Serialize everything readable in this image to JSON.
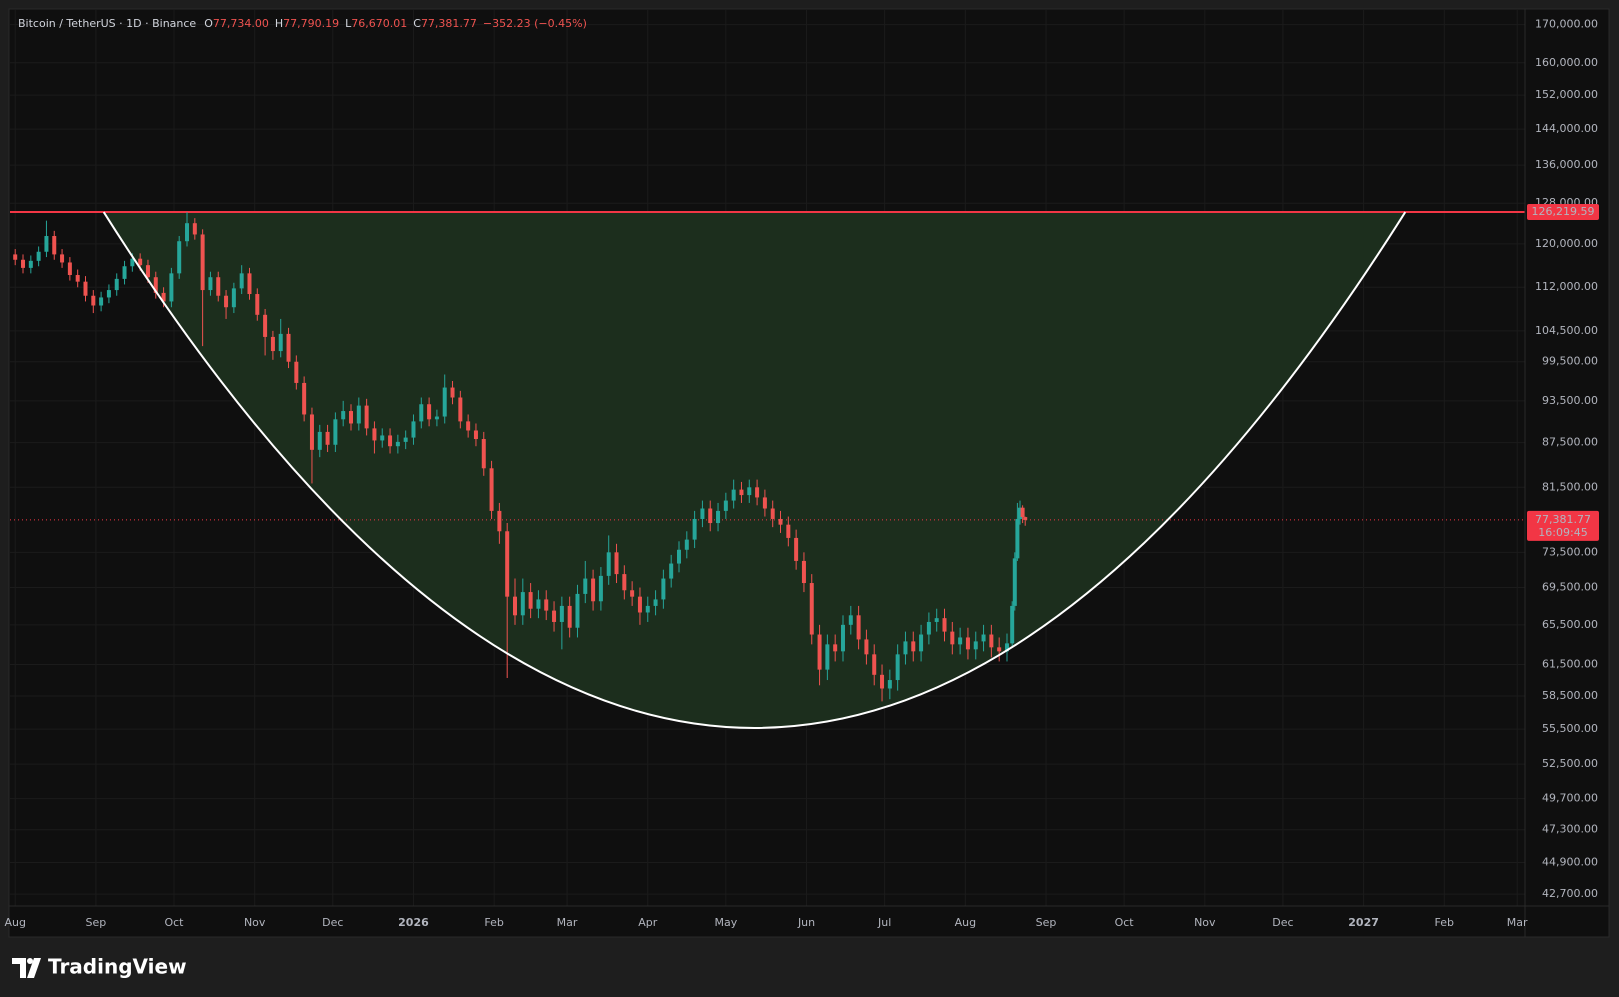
{
  "chart_data": {
    "type": "candlestick",
    "header": {
      "symbol": "Bitcoin / TetherUS · 1D · Binance",
      "ohlc": [
        {
          "key": "O",
          "value": "77,734.00"
        },
        {
          "key": "H",
          "value": "77,790.19"
        },
        {
          "key": "L",
          "value": "76,670.01"
        },
        {
          "key": "C",
          "value": "77,381.77"
        }
      ],
      "change": "−352.23 (−0.45%)"
    },
    "log_scale": true,
    "grid": true,
    "up_color": "#26a69a",
    "down_color": "#ef5350",
    "xlim": [
      -2,
      580
    ],
    "ylim": [
      41900,
      174000
    ],
    "xticks": [
      {
        "value": 0,
        "label": "Aug"
      },
      {
        "value": 31,
        "label": "Sep"
      },
      {
        "value": 61,
        "label": "Oct"
      },
      {
        "value": 92,
        "label": "Nov"
      },
      {
        "value": 122,
        "label": "Dec"
      },
      {
        "value": 153,
        "label": "2026"
      },
      {
        "value": 184,
        "label": "Feb"
      },
      {
        "value": 212,
        "label": "Mar"
      },
      {
        "value": 243,
        "label": "Apr"
      },
      {
        "value": 273,
        "label": "May"
      },
      {
        "value": 304,
        "label": "Jun"
      },
      {
        "value": 334,
        "label": "Jul"
      },
      {
        "value": 365,
        "label": "Aug"
      },
      {
        "value": 396,
        "label": "Sep"
      },
      {
        "value": 426,
        "label": "Oct"
      },
      {
        "value": 457,
        "label": "Nov"
      },
      {
        "value": 487,
        "label": "Dec"
      },
      {
        "value": 518,
        "label": "2027"
      },
      {
        "value": 549,
        "label": "Feb"
      },
      {
        "value": 577,
        "label": "Mar"
      }
    ],
    "yticks": [
      {
        "value": 170000,
        "label": "170,000.00"
      },
      {
        "value": 160000,
        "label": "160,000.00"
      },
      {
        "value": 152000,
        "label": "152,000.00"
      },
      {
        "value": 144000,
        "label": "144,000.00"
      },
      {
        "value": 136000,
        "label": "136,000.00"
      },
      {
        "value": 128000,
        "label": "128,000.00"
      },
      {
        "value": 120000,
        "label": "120,000.00"
      },
      {
        "value": 112000,
        "label": "112,000.00"
      },
      {
        "value": 104500,
        "label": "104,500.00"
      },
      {
        "value": 99500,
        "label": "99,500.00"
      },
      {
        "value": 93500,
        "label": "93,500.00"
      },
      {
        "value": 87500,
        "label": "87,500.00"
      },
      {
        "value": 81500,
        "label": "81,500.00"
      },
      {
        "value": 73500,
        "label": "73,500.00"
      },
      {
        "value": 69500,
        "label": "69,500.00"
      },
      {
        "value": 65500,
        "label": "65,500.00"
      },
      {
        "value": 61500,
        "label": "61,500.00"
      },
      {
        "value": 58500,
        "label": "58,500.00"
      },
      {
        "value": 55500,
        "label": "55,500.00"
      },
      {
        "value": 52500,
        "label": "52,500.00"
      },
      {
        "value": 49700,
        "label": "49,700.00"
      },
      {
        "value": 47300,
        "label": "47,300.00"
      },
      {
        "value": 44900,
        "label": "44,900.00"
      },
      {
        "value": 42700,
        "label": "42,700.00"
      }
    ],
    "x": [
      0,
      3,
      6,
      9,
      12,
      15,
      18,
      21,
      24,
      27,
      30,
      33,
      36,
      39,
      42,
      45,
      48,
      51,
      54,
      57,
      60,
      63,
      66,
      69,
      72,
      75,
      78,
      81,
      84,
      87,
      90,
      93,
      96,
      99,
      102,
      105,
      108,
      111,
      114,
      117,
      120,
      123,
      126,
      129,
      132,
      135,
      138,
      141,
      144,
      147,
      150,
      153,
      156,
      159,
      162,
      165,
      168,
      171,
      174,
      177,
      180,
      183,
      186,
      189,
      192,
      195,
      198,
      201,
      204,
      207,
      210,
      213,
      216,
      219,
      222,
      225,
      228,
      231,
      234,
      237,
      240,
      243,
      246,
      249,
      252,
      255,
      258,
      261,
      264,
      267,
      270,
      273,
      276,
      279,
      282,
      285,
      288,
      291,
      294,
      297,
      300,
      303,
      306,
      309,
      312,
      315,
      318,
      321,
      324,
      327,
      330,
      333,
      336,
      339,
      342,
      345,
      348,
      351,
      354,
      357,
      360,
      363,
      366,
      369,
      372,
      375,
      378,
      381,
      383,
      384,
      385,
      386,
      387,
      388
    ],
    "open": [
      118000,
      117000,
      115500,
      116800,
      118500,
      121500,
      118000,
      116500,
      114200,
      113000,
      110500,
      108800,
      110200,
      111500,
      113500,
      115800,
      117200,
      116000,
      113800,
      111000,
      109500,
      114500,
      120500,
      124000,
      121800,
      111500,
      113800,
      110500,
      108500,
      111800,
      114500,
      110800,
      107200,
      103500,
      101200,
      104000,
      99500,
      96200,
      91500,
      86500,
      89000,
      87200,
      90800,
      92000,
      90200,
      92800,
      89500,
      87800,
      88500,
      87000,
      87600,
      88200,
      90500,
      93000,
      90800,
      91200,
      95500,
      94000,
      90500,
      89200,
      88000,
      84000,
      78500,
      76000,
      68500,
      66500,
      69000,
      67200,
      68200,
      67000,
      65800,
      67500,
      65200,
      68800,
      70500,
      68000,
      70800,
      73500,
      71000,
      69200,
      68500,
      66800,
      67500,
      68200,
      70500,
      72200,
      73800,
      75000,
      77500,
      78800,
      77000,
      78500,
      79800,
      81200,
      80500,
      81500,
      80200,
      78800,
      77500,
      76800,
      75200,
      72500,
      70000,
      64500,
      61000,
      63500,
      62800,
      65500,
      66500,
      64000,
      62500,
      60500,
      59200,
      60000,
      62500,
      63800,
      62800,
      64500,
      65800,
      66200,
      64800,
      63500,
      64200,
      63000,
      63800,
      64500,
      63200,
      62800,
      63600,
      67500,
      72800,
      77500,
      78900,
      77734
    ],
    "high": [
      119000,
      118000,
      117800,
      119500,
      124500,
      122500,
      119000,
      117500,
      115200,
      114000,
      111500,
      111200,
      112500,
      114500,
      116800,
      118200,
      118200,
      117000,
      114800,
      112000,
      115500,
      121500,
      126200,
      125000,
      122800,
      114800,
      114800,
      111500,
      112800,
      116000,
      115500,
      111800,
      108200,
      104500,
      106500,
      105000,
      100500,
      97200,
      92500,
      90000,
      90000,
      91800,
      93500,
      93000,
      94000,
      93800,
      90500,
      89500,
      89500,
      88600,
      89200,
      91500,
      94000,
      94000,
      92200,
      97500,
      96500,
      95000,
      91500,
      90200,
      89000,
      85000,
      79500,
      77000,
      70500,
      70500,
      70000,
      69200,
      69200,
      68000,
      68500,
      68500,
      69800,
      72500,
      71500,
      71800,
      75500,
      74500,
      72000,
      70200,
      69500,
      68500,
      69200,
      71500,
      73200,
      74800,
      76000,
      78500,
      79800,
      79800,
      79500,
      80800,
      82500,
      82200,
      82500,
      82500,
      81200,
      79800,
      78500,
      77800,
      76200,
      73500,
      71000,
      65500,
      64500,
      64500,
      66500,
      67500,
      67500,
      65000,
      63500,
      61500,
      61000,
      63500,
      64800,
      64800,
      65500,
      66800,
      67200,
      67200,
      65800,
      65200,
      65200,
      64800,
      65500,
      65500,
      64200,
      64600,
      68000,
      73500,
      79500,
      79800,
      79200,
      77790.19
    ],
    "low": [
      116000,
      114500,
      114500,
      115800,
      117500,
      117000,
      115500,
      113200,
      112000,
      109500,
      107500,
      107800,
      109200,
      110500,
      112500,
      114800,
      115000,
      112800,
      110000,
      108500,
      108500,
      113500,
      119500,
      120800,
      102000,
      110500,
      109500,
      106500,
      107500,
      110800,
      109800,
      106200,
      100500,
      99800,
      100200,
      98500,
      95200,
      90500,
      82000,
      85500,
      86200,
      86200,
      89800,
      89200,
      89200,
      88500,
      86000,
      86800,
      86000,
      86000,
      86600,
      87200,
      89500,
      89800,
      89800,
      90200,
      93000,
      89500,
      88200,
      87000,
      83000,
      77500,
      74500,
      60200,
      65500,
      65500,
      66200,
      66200,
      66000,
      64800,
      63000,
      64200,
      64200,
      67800,
      67000,
      67000,
      69800,
      70000,
      68200,
      67500,
      65500,
      65800,
      66500,
      67200,
      69500,
      71200,
      72800,
      74000,
      76500,
      76000,
      76000,
      77500,
      78800,
      79500,
      79500,
      79200,
      77800,
      76500,
      75800,
      74200,
      71500,
      69000,
      63500,
      59500,
      60000,
      61800,
      61800,
      64500,
      63000,
      61500,
      59500,
      58000,
      58200,
      59000,
      61500,
      61800,
      61800,
      63500,
      64800,
      63800,
      62500,
      62500,
      62000,
      62000,
      62800,
      62200,
      61800,
      61800,
      63200,
      67000,
      72500,
      76800,
      77000,
      76670.01
    ],
    "close": [
      117000,
      115500,
      116800,
      118500,
      121500,
      118000,
      116500,
      114200,
      113000,
      110500,
      108800,
      110200,
      111500,
      113500,
      115800,
      117200,
      116000,
      113800,
      111000,
      109500,
      114500,
      120500,
      124000,
      121800,
      111500,
      113800,
      110500,
      108500,
      111800,
      114500,
      110800,
      107200,
      103500,
      101200,
      104000,
      99500,
      96200,
      91500,
      86500,
      89000,
      87200,
      90800,
      92000,
      90200,
      92800,
      89500,
      87800,
      88500,
      87000,
      87600,
      88200,
      90500,
      93000,
      90800,
      91200,
      95500,
      94000,
      90500,
      89200,
      88000,
      84000,
      78500,
      76000,
      68500,
      66500,
      69000,
      67200,
      68200,
      67000,
      65800,
      67500,
      65200,
      68800,
      70500,
      68000,
      70800,
      73500,
      71000,
      69200,
      68500,
      66800,
      67500,
      68200,
      70500,
      72200,
      73800,
      75000,
      77500,
      78800,
      77000,
      78500,
      79800,
      81200,
      80500,
      81500,
      80200,
      78800,
      77500,
      76800,
      75200,
      72500,
      70000,
      64500,
      61000,
      63500,
      62800,
      65500,
      66500,
      64000,
      62500,
      60500,
      59200,
      60000,
      62500,
      63800,
      62800,
      64500,
      65800,
      66200,
      64800,
      63500,
      64200,
      63000,
      63800,
      64500,
      63200,
      62800,
      63600,
      67500,
      72800,
      77500,
      78900,
      77734,
      77381.77
    ],
    "hline": {
      "value": 126219.59,
      "label": "126,219.59",
      "color": "#f23645"
    },
    "last_price": {
      "value": 77381.77,
      "label": "77,381.77",
      "countdown": "16:09:45",
      "color": "#f23645"
    },
    "cup": {
      "x": [
        34,
        534
      ],
      "top": 126219.59,
      "bottom": 55600,
      "color": "#ffffff",
      "fill": "#1c2e1d"
    }
  },
  "footer": {
    "brand": "TradingView"
  }
}
